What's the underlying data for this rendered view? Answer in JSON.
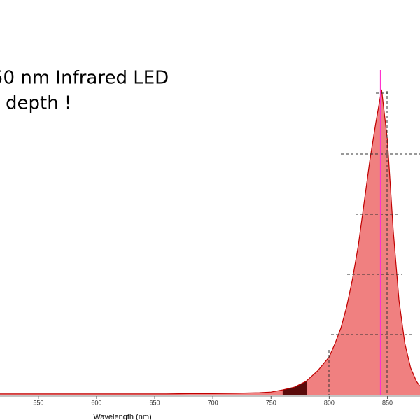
{
  "chart_data": {
    "type": "area",
    "annotations": [
      "50 nm Infrared LED",
      "depth !"
    ],
    "x_label": "Wavelength (nm)",
    "x": [
      517,
      540,
      560,
      580,
      600,
      620,
      640,
      660,
      680,
      700,
      720,
      740,
      750,
      760,
      770,
      780,
      790,
      800,
      805,
      810,
      815,
      820,
      825,
      830,
      835,
      840,
      845,
      850,
      855,
      860,
      865,
      870,
      875,
      878
    ],
    "series": [
      {
        "color": "#f08080",
        "line_color": "#c00000",
        "values": [
          0.005,
          0.005,
          0.005,
          0.005,
          0.005,
          0.005,
          0.005,
          0.005,
          0.006,
          0.006,
          0.007,
          0.009,
          0.011,
          0.018,
          0.027,
          0.046,
          0.08,
          0.126,
          0.17,
          0.22,
          0.29,
          0.38,
          0.49,
          0.63,
          0.77,
          0.89,
          1.0,
          0.835,
          0.54,
          0.31,
          0.17,
          0.09,
          0.046,
          0.03
        ]
      }
    ],
    "highlight": {
      "range": [
        760,
        781
      ],
      "color": "#5a0a0a"
    },
    "peak_line": {
      "x": 844,
      "color": "#ff33cc"
    },
    "xlim": [
      517,
      878
    ],
    "ylim": [
      0,
      1.0
    ],
    "xticks": [
      550,
      600,
      650,
      700,
      750,
      800,
      850
    ]
  }
}
